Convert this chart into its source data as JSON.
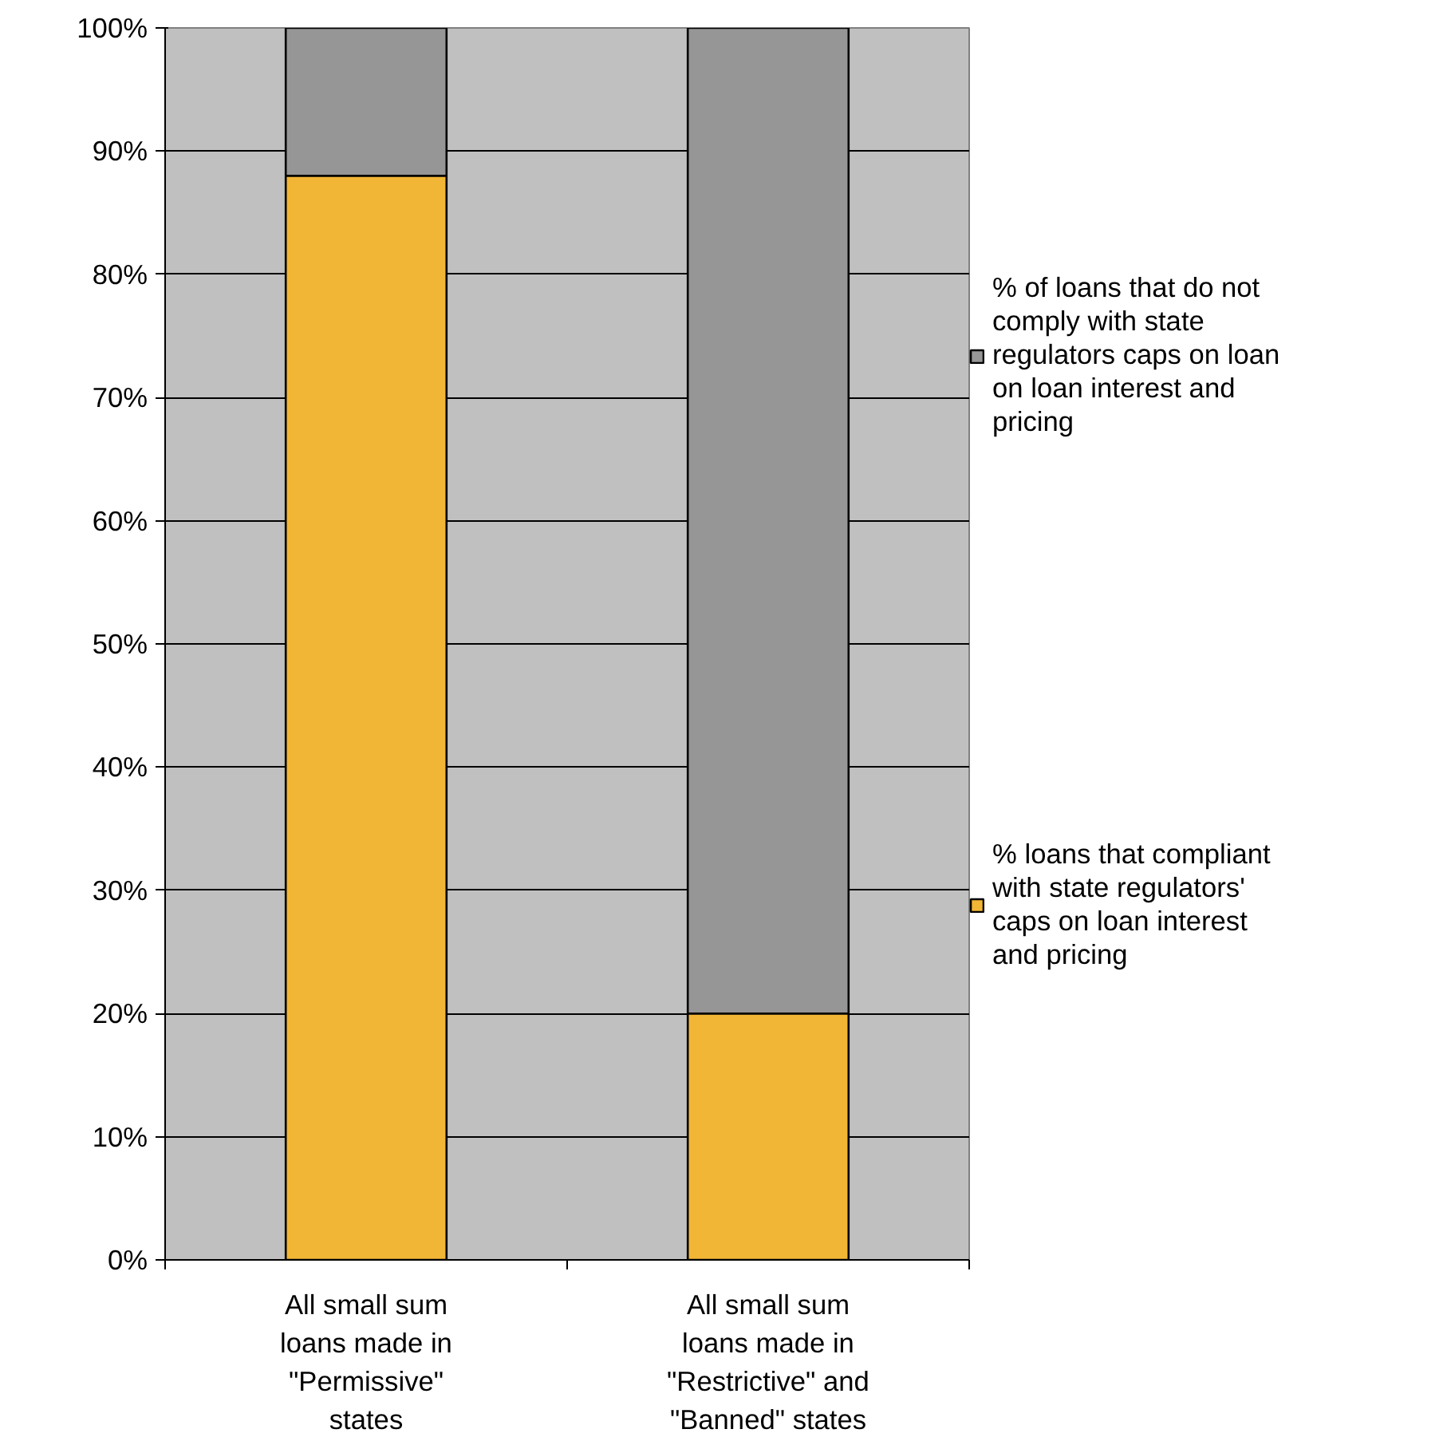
{
  "chart_data": {
    "type": "bar",
    "stacked": true,
    "categories": [
      "All small sum loans made in \"Permissive\" states",
      "All small sum loans made in \"Restrictive\" and \"Banned\" states"
    ],
    "series": [
      {
        "name": "% loans that compliant with state regulators' caps on loan interest and pricing",
        "color": "#f2b636",
        "values": [
          88,
          20
        ]
      },
      {
        "name": "% of loans that do not comply with state regulators caps on loan on loan interest and pricing",
        "color": "#969696",
        "values": [
          12,
          80
        ]
      }
    ],
    "ylim": [
      0,
      100
    ],
    "yticks": [
      {
        "value": 0,
        "label": "0%"
      },
      {
        "value": 10,
        "label": "10%"
      },
      {
        "value": 20,
        "label": "20%"
      },
      {
        "value": 30,
        "label": "30%"
      },
      {
        "value": 40,
        "label": "40%"
      },
      {
        "value": 50,
        "label": "50%"
      },
      {
        "value": 60,
        "label": "60%"
      },
      {
        "value": 70,
        "label": "70%"
      },
      {
        "value": 80,
        "label": "80%"
      },
      {
        "value": 90,
        "label": "90%"
      },
      {
        "value": 100,
        "label": "100%"
      }
    ],
    "grid": "y",
    "legend": "right"
  }
}
